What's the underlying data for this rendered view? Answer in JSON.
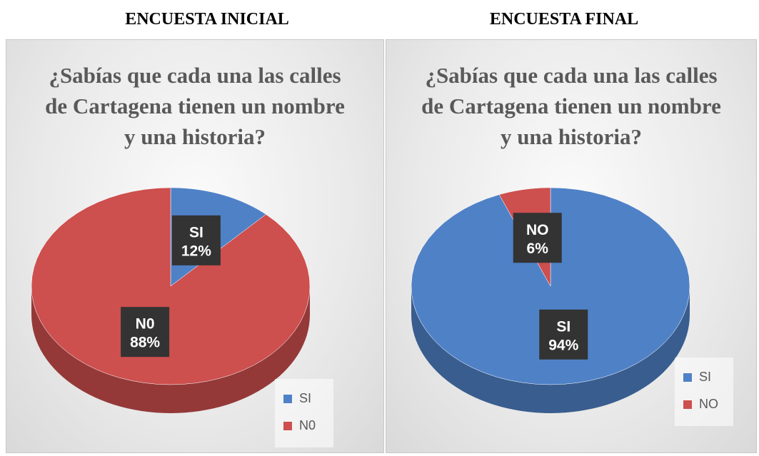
{
  "headings": [
    "ENCUESTA INICIAL",
    "ENCUESTA FINAL"
  ],
  "chart_data": [
    {
      "type": "pie",
      "title": "¿Sabías que cada una las calles de Cartagena tienen un nombre y una historia?",
      "categories": [
        "SI",
        "N0"
      ],
      "values": [
        12,
        88
      ],
      "value_labels": [
        "12%",
        "88%"
      ],
      "colors": [
        "#4f81c7",
        "#cd4f4e"
      ],
      "legend": "bottom-right"
    },
    {
      "type": "pie",
      "title": "¿Sabías que cada una las calles de Cartagena tienen un nombre y una historia?",
      "categories": [
        "SI",
        "NO"
      ],
      "values": [
        94,
        6
      ],
      "value_labels": [
        "94%",
        "6%"
      ],
      "colors": [
        "#4f81c7",
        "#cd4f4e"
      ],
      "legend": "bottom-right"
    }
  ]
}
